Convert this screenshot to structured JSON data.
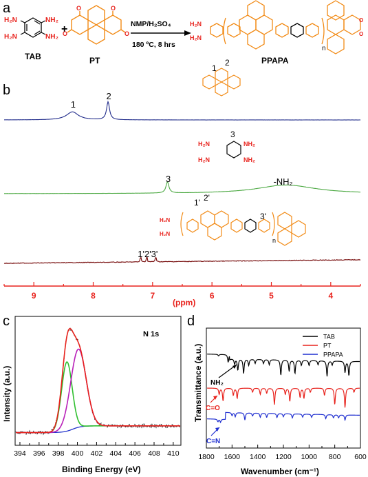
{
  "figure": {
    "panel_labels": [
      "a",
      "b",
      "c",
      "d"
    ]
  },
  "scheme": {
    "reactant1_label": "TAB",
    "reactant2_label": "PT",
    "product_label": "PPAPA",
    "plus": "+",
    "conditions_top": "NMP/H₂SO₄",
    "conditions_bottom": "180 ºC, 8 hrs",
    "nh2": "NH₂",
    "h2n": "H₂N",
    "n_index": "n",
    "colors": {
      "amine": "#e8221c",
      "pyrene": "#f28a14",
      "text": "#000000"
    }
  },
  "nmr": {
    "xlabel": "(ppm)",
    "peak_labels": {
      "pt": [
        "1",
        "2"
      ],
      "tab": [
        "3",
        "-NH₂"
      ],
      "ppapa": [
        "1'2'3'"
      ],
      "ppapa_structure": [
        "1'",
        "2'",
        "3'"
      ],
      "pt_structure": [
        "1",
        "2"
      ],
      "tab_structure": [
        "3"
      ]
    },
    "colors": {
      "pt": "#1f2a8a",
      "tab": "#4aa840",
      "ppapa": "#7a1212",
      "axis": "#e8221c"
    }
  },
  "xps": {
    "title": "N 1s",
    "colors": {
      "raw": "#000000",
      "envelope": "#e8221c",
      "c1": "#2fbf2f",
      "c2": "#b81eb8",
      "background": "#2233cc"
    }
  },
  "ftir": {
    "annotations": [
      "NH₂",
      "C=O",
      "C=N"
    ],
    "colors": {
      "TAB": "#000000",
      "PT": "#e8221c",
      "PPAPA": "#1f2ed0"
    }
  },
  "chart_data": [
    {
      "panel": "b",
      "type": "line",
      "title": "",
      "xlabel": "(ppm)",
      "ylabel": "",
      "xlim": [
        9.5,
        3.5
      ],
      "xticks": [
        9,
        8,
        7,
        6,
        5,
        4
      ],
      "series": [
        {
          "name": "",
          "peaks": [
            {
              "x": 8.35,
              "height": 0.45,
              "width": 0.12,
              "label": "1"
            },
            {
              "x": 7.75,
              "height": 1.0,
              "width": 0.03,
              "label": "2"
            }
          ]
        },
        {
          "name": "",
          "peaks": [
            {
              "x": 6.75,
              "height": 0.45,
              "width": 0.03,
              "label": "3"
            },
            {
              "x": 4.75,
              "height": 0.35,
              "width": 0.6,
              "label": "-NH₂"
            }
          ]
        },
        {
          "name": "",
          "peaks": [
            {
              "x": 7.2,
              "height": 0.5,
              "width": 0.01
            },
            {
              "x": 7.1,
              "height": 0.5,
              "width": 0.01
            },
            {
              "x": 6.95,
              "height": 0.5,
              "width": 0.01
            }
          ]
        }
      ]
    },
    {
      "panel": "c",
      "type": "line",
      "title": "N 1s",
      "xlabel": "Binding Energy (eV)",
      "ylabel": "Intensity (a.u.)",
      "xlim": [
        393.5,
        410.8
      ],
      "xticks": [
        394,
        396,
        398,
        400,
        402,
        404,
        406,
        408,
        410
      ],
      "series": [
        {
          "name": "",
          "component": "c1",
          "center": 398.9,
          "fwhm": 1.3,
          "height": 0.62
        },
        {
          "name": "",
          "component": "c2",
          "center": 400.1,
          "fwhm": 1.9,
          "height": 0.7
        },
        {
          "name": "",
          "component": "background",
          "low": 0.04,
          "high": 0.1
        }
      ]
    },
    {
      "panel": "d",
      "type": "line",
      "title": "",
      "xlabel": "Wavenumber (cm⁻¹)",
      "ylabel": "Transmittance (a.u.)",
      "xlim": [
        1800,
        600
      ],
      "xticks": [
        1800,
        1600,
        1400,
        1200,
        1000,
        800,
        600
      ],
      "legend": "top-right",
      "series": [
        {
          "name": "TAB",
          "dips": [
            [
              1705,
              3
            ],
            [
              1630,
              15
            ],
            [
              1580,
              10
            ],
            [
              1555,
              22
            ],
            [
              1510,
              28
            ],
            [
              1470,
              12
            ],
            [
              1420,
              8
            ],
            [
              1355,
              8
            ],
            [
              1310,
              10
            ],
            [
              1220,
              30
            ],
            [
              1155,
              22
            ],
            [
              1110,
              26
            ],
            [
              1060,
              10
            ],
            [
              1000,
              10
            ],
            [
              930,
              8
            ],
            [
              860,
              30
            ],
            [
              820,
              8
            ],
            [
              720,
              22
            ],
            [
              690,
              28
            ]
          ]
        },
        {
          "name": "PT",
          "dips": [
            [
              1700,
              12
            ],
            [
              1670,
              25
            ],
            [
              1590,
              14
            ],
            [
              1560,
              20
            ],
            [
              1440,
              8
            ],
            [
              1380,
              12
            ],
            [
              1330,
              10
            ],
            [
              1270,
              32
            ],
            [
              1185,
              12
            ],
            [
              1150,
              26
            ],
            [
              1070,
              18
            ],
            [
              1040,
              20
            ],
            [
              990,
              8
            ],
            [
              880,
              14
            ],
            [
              800,
              32
            ],
            [
              720,
              38
            ],
            [
              650,
              8
            ]
          ]
        },
        {
          "name": "PPAPA",
          "dips": [
            [
              1710,
              5
            ],
            [
              1690,
              6
            ],
            [
              1600,
              6
            ],
            [
              1575,
              8
            ],
            [
              1500,
              14
            ],
            [
              1440,
              6
            ],
            [
              1380,
              8
            ],
            [
              1330,
              8
            ],
            [
              1250,
              8
            ],
            [
              1200,
              6
            ],
            [
              1130,
              8
            ],
            [
              1050,
              6
            ],
            [
              980,
              6
            ],
            [
              870,
              8
            ],
            [
              810,
              6
            ],
            [
              770,
              6
            ],
            [
              720,
              10
            ]
          ]
        }
      ]
    }
  ]
}
